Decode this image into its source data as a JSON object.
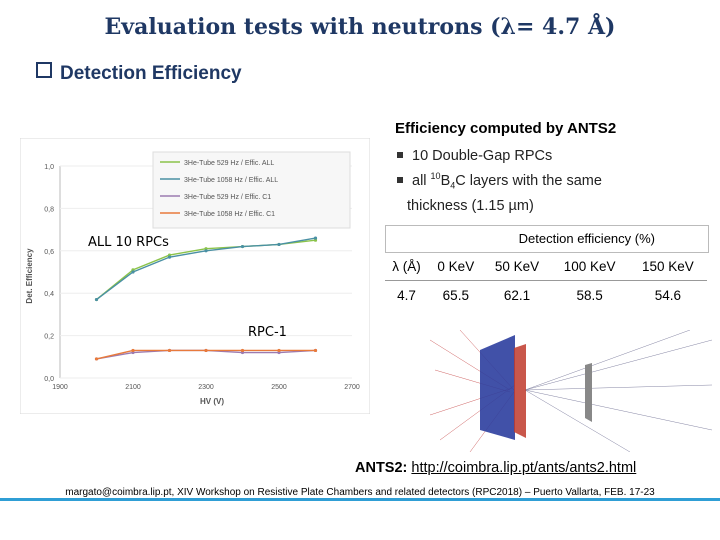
{
  "title": "Evaluation tests with neutrons (λ= 4.7 Å)",
  "section": "Detection Efficiency",
  "ants": {
    "title": "Efficiency computed by ANTS2",
    "bullet1": "10 Double-Gap RPCs",
    "bullet2_pre": "all ",
    "bullet2_sup": "10",
    "bullet2_mid": "B",
    "bullet2_sub": "4",
    "bullet2_post": "C layers with the same",
    "bullet2_cont": "thickness (1.15 µm)",
    "link_label": "ANTS2:",
    "link_url": "http://coimbra.lip.pt/ants/ants2.html"
  },
  "table": {
    "title": "Detection efficiency (%)",
    "headers": [
      "λ (Å)",
      "0 KeV",
      "50 KeV",
      "100 KeV",
      "150 KeV"
    ],
    "row": [
      "4.7",
      "65.5",
      "62.1",
      "58.5",
      "54.6"
    ]
  },
  "chart_data": {
    "type": "line",
    "xlabel": "HV (V)",
    "ylabel": "Det. Efficiency",
    "xlim": [
      1900,
      2700
    ],
    "ylim": [
      0,
      1.0
    ],
    "xticks": [
      "1900",
      "2100",
      "2300",
      "2500",
      "2700"
    ],
    "yticks": [
      "0,0",
      "0,2",
      "0,4",
      "0,6",
      "0,8",
      "1,0"
    ],
    "x": [
      2000,
      2100,
      2200,
      2300,
      2400,
      2500,
      2600
    ],
    "series": [
      {
        "name": "3He-Tube 529 Hz / Effic. ALL",
        "color": "#8bc34a",
        "values": [
          0.37,
          0.51,
          0.58,
          0.61,
          0.62,
          0.63,
          0.65
        ]
      },
      {
        "name": "3He-Tube 1058 Hz / Effic. ALL",
        "color": "#4a90a4",
        "values": [
          0.37,
          0.5,
          0.57,
          0.6,
          0.62,
          0.63,
          0.66
        ]
      },
      {
        "name": "3He-Tube 529 Hz / Effic. C1",
        "color": "#9c7bb0",
        "values": [
          0.09,
          0.12,
          0.13,
          0.13,
          0.12,
          0.12,
          0.13
        ]
      },
      {
        "name": "3He-Tube 1058 Hz / Effic. C1",
        "color": "#e87a3c",
        "values": [
          0.09,
          0.13,
          0.13,
          0.13,
          0.13,
          0.13,
          0.13
        ]
      }
    ],
    "annotations": [
      "ALL 10 RPCs",
      "RPC-1"
    ]
  },
  "footer": "margato@coimbra.lip.pt, XIV Workshop on Resistive Plate Chambers and related detectors (RPC2018) – Puerto Vallarta, FEB. 17-23",
  "colors": {
    "accent": "#1f3864",
    "rule": "#2f9ed5"
  }
}
